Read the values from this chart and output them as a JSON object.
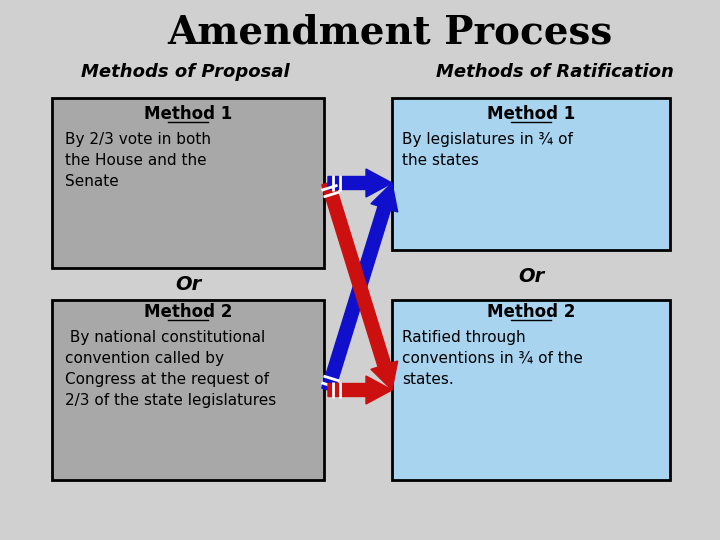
{
  "title": "Amendment Process",
  "title_fontsize": 28,
  "title_fontweight": "bold",
  "left_header": "Methods of Proposal",
  "right_header": "Methods of Ratification",
  "header_fontsize": 13,
  "header_fontweight": "bold",
  "box_left_color": "#a8a8a8",
  "box_right_color": "#a8d4f0",
  "box_border_color": "#000000",
  "bg_color": "#d0d0d0",
  "method1_left_title": "Method 1",
  "method1_left_text": "By 2/3 vote in both\nthe House and the\nSenate",
  "method2_left_title": "Method 2",
  "method2_left_text": " By national constitutional\nconvention called by\nCongress at the request of\n2/3 of the state legislatures",
  "method1_right_title": "Method 1",
  "method1_right_text": "By legislatures in ¾ of\nthe states",
  "method2_right_title": "Method 2",
  "method2_right_text": "Ratified through\nconventions in ¾ of the\nstates.",
  "or_left": "Or",
  "or_right": "Or",
  "arrow_blue_color": "#1010cc",
  "arrow_red_color": "#cc1010",
  "text_fontsize": 11,
  "method_title_fontsize": 12
}
